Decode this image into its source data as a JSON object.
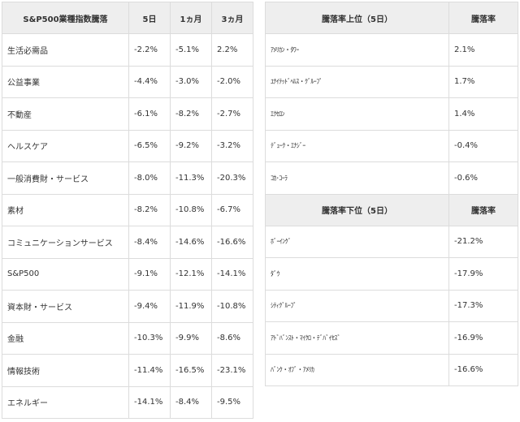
{
  "sector_table": {
    "headers": [
      "S&P500業種指数騰落",
      "5日",
      "1ヵ月",
      "3ヵ月"
    ],
    "rows": [
      {
        "name": "生活必需品",
        "d5": "-2.2%",
        "m1": "-5.1%",
        "m3": "2.2%"
      },
      {
        "name": "公益事業",
        "d5": "-4.4%",
        "m1": "-3.0%",
        "m3": "-2.0%"
      },
      {
        "name": "不動産",
        "d5": "-6.1%",
        "m1": "-8.2%",
        "m3": "-2.7%"
      },
      {
        "name": "ヘルスケア",
        "d5": "-6.5%",
        "m1": "-9.2%",
        "m3": "-3.2%"
      },
      {
        "name": "一般消費財・サービス",
        "d5": "-8.0%",
        "m1": "-11.3%",
        "m3": "-20.3%"
      },
      {
        "name": "素材",
        "d5": "-8.2%",
        "m1": "-10.8%",
        "m3": "-6.7%"
      },
      {
        "name": "コミュニケーションサービス",
        "d5": "-8.4%",
        "m1": "-14.6%",
        "m3": "-16.6%"
      },
      {
        "name": "S&P500",
        "d5": "-9.1%",
        "m1": "-12.1%",
        "m3": "-14.1%"
      },
      {
        "name": "資本財・サービス",
        "d5": "-9.4%",
        "m1": "-11.9%",
        "m3": "-10.8%"
      },
      {
        "name": "金融",
        "d5": "-10.3%",
        "m1": "-9.9%",
        "m3": "-8.6%"
      },
      {
        "name": "情報技術",
        "d5": "-11.4%",
        "m1": "-16.5%",
        "m3": "-23.1%"
      },
      {
        "name": "エネルギー",
        "d5": "-14.1%",
        "m1": "-8.4%",
        "m3": "-9.5%"
      }
    ]
  },
  "top_table": {
    "headers": [
      "騰落率上位（5日）",
      "騰落率"
    ],
    "rows": [
      {
        "name": "ｱﾒﾘｶﾝ・ﾀﾜｰ",
        "rate": "2.1%"
      },
      {
        "name": "ﾕﾅｲﾃｯﾄﾞﾍﾙｽ・ｸﾞﾙｰﾌﾟ",
        "rate": "1.7%"
      },
      {
        "name": "ｴｸｾﾛﾝ",
        "rate": "1.4%"
      },
      {
        "name": "ﾃﾞｭｰｸ・ｴﾅｼﾞｰ",
        "rate": "-0.4%"
      },
      {
        "name": "ｺｶ･ｺｰﾗ",
        "rate": "-0.6%"
      }
    ]
  },
  "bottom_table": {
    "headers": [
      "騰落率下位（5日）",
      "騰落率"
    ],
    "rows": [
      {
        "name": "ﾎﾞｰｲﾝｸﾞ",
        "rate": "-21.2%"
      },
      {
        "name": "ﾀﾞｳ",
        "rate": "-17.9%"
      },
      {
        "name": "ｼﾃｨｸﾞﾙｰﾌﾟ",
        "rate": "-17.3%"
      },
      {
        "name": "ｱﾄﾞﾊﾞﾝｽﾄ・ﾏｲｸﾛ・ﾃﾞﾊﾞｲｾｽﾞ",
        "rate": "-16.9%"
      },
      {
        "name": "ﾊﾞﾝｸ・ｵﾌﾞ・ｱﾒﾘｶ",
        "rate": "-16.6%"
      }
    ]
  }
}
